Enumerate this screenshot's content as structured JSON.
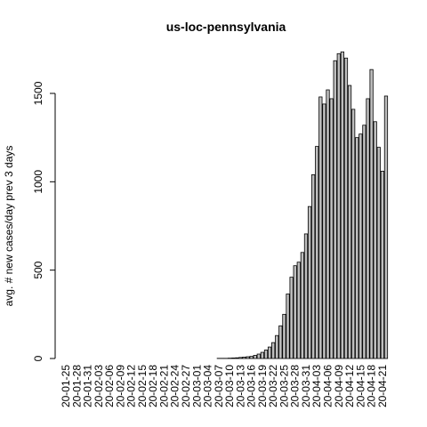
{
  "chart_data": {
    "type": "bar",
    "title": "us-loc-pennsylvania",
    "y_label": "avg. # new cases/day prev  3  days",
    "categories": [
      "20-01-25",
      null,
      null,
      "20-01-28",
      null,
      null,
      "20-01-31",
      null,
      null,
      "20-02-03",
      null,
      null,
      "20-02-06",
      null,
      null,
      "20-02-09",
      null,
      null,
      "20-02-12",
      null,
      null,
      "20-02-15",
      null,
      null,
      "20-02-18",
      null,
      null,
      "20-02-21",
      null,
      null,
      "20-02-24",
      null,
      null,
      "20-02-27",
      null,
      null,
      "20-03-01",
      null,
      null,
      "20-03-04",
      null,
      null,
      "20-03-07",
      null,
      null,
      "20-03-10",
      null,
      null,
      "20-03-13",
      null,
      null,
      "20-03-16",
      null,
      null,
      "20-03-19",
      null,
      null,
      "20-03-22",
      null,
      null,
      "20-03-25",
      null,
      null,
      "20-03-28",
      null,
      null,
      "20-03-31",
      null,
      null,
      "20-04-03",
      null,
      null,
      "20-04-06",
      null,
      null,
      "20-04-09",
      null,
      null,
      "20-04-12",
      null,
      null,
      "20-04-15",
      null,
      null,
      "20-04-18",
      null,
      null,
      "20-04-21",
      null
    ],
    "values": [
      0,
      0,
      0,
      0,
      0,
      0,
      0,
      0,
      0,
      0,
      0,
      0,
      0,
      0,
      0,
      0,
      0,
      0,
      0,
      0,
      0,
      0,
      0,
      0,
      0,
      0,
      0,
      0,
      0,
      0,
      0,
      0,
      0,
      0,
      0,
      0,
      0,
      0,
      0,
      0,
      0,
      0,
      1,
      1,
      1,
      2,
      3,
      4,
      6,
      8,
      10,
      12,
      18,
      25,
      35,
      48,
      65,
      90,
      130,
      185,
      250,
      365,
      460,
      525,
      545,
      600,
      705,
      860,
      1040,
      1200,
      1480,
      1440,
      1520,
      1470,
      1685,
      1725,
      1735,
      1700,
      1545,
      1410,
      1250,
      1270,
      1320,
      1470,
      1635,
      1340,
      1195,
      1060,
      1485
    ],
    "color": "#bebebe",
    "ylim": [
      0,
      1735
    ],
    "yticks": [
      0,
      500,
      1000,
      1500
    ]
  }
}
